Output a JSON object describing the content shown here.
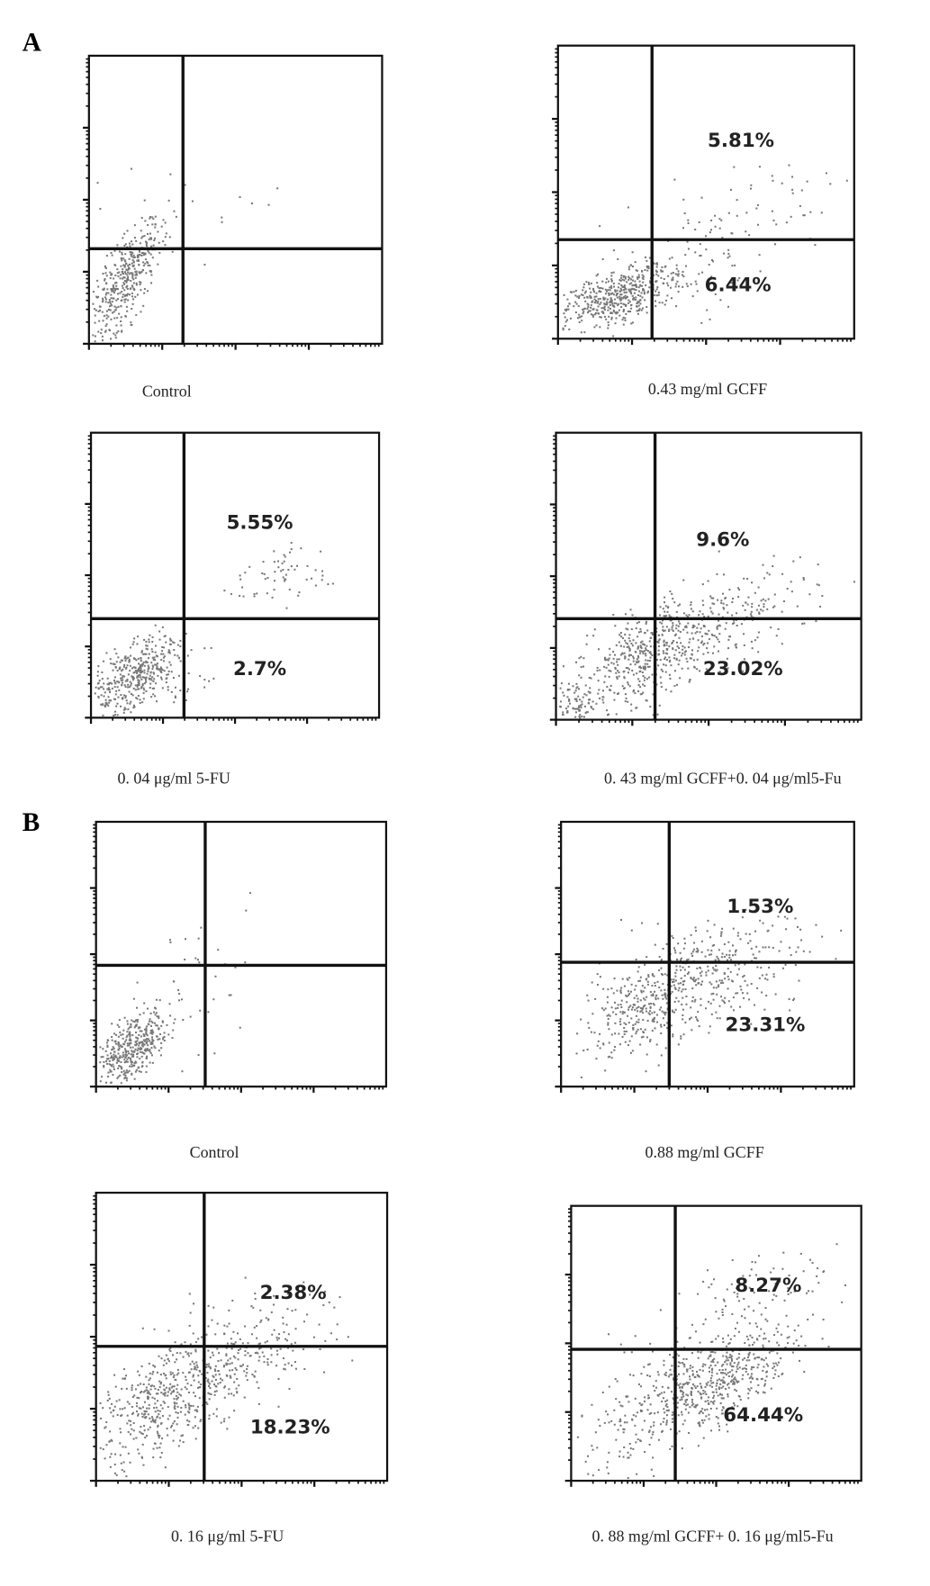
{
  "panels": [
    {
      "label": "A",
      "plots": [
        {
          "caption": "Control"
        },
        {
          "caption": "0.43 mg/ml GCFF",
          "upper_right": "5.81%",
          "lower_right": "6.44%"
        },
        {
          "caption": "0. 04 μg/ml 5-FU",
          "upper_right": "5.55%",
          "lower_right": "2.7%"
        },
        {
          "caption": "0. 43 mg/ml GCFF+0. 04 μg/ml5-Fu",
          "upper_right": "9.6%",
          "lower_right": "23.02%"
        }
      ]
    },
    {
      "label": "B",
      "plots": [
        {
          "caption": "Control"
        },
        {
          "caption": "0.88 mg/ml GCFF",
          "upper_right": "1.53%",
          "lower_right": "23.31%"
        },
        {
          "caption": "0. 16 μg/ml 5-FU",
          "upper_right": "2.38%",
          "lower_right": "18.23%"
        },
        {
          "caption": "0. 88 mg/ml GCFF+ 0. 16 μg/ml5-Fu",
          "upper_right": "8.27%",
          "lower_right": "64.44%"
        }
      ]
    }
  ]
}
